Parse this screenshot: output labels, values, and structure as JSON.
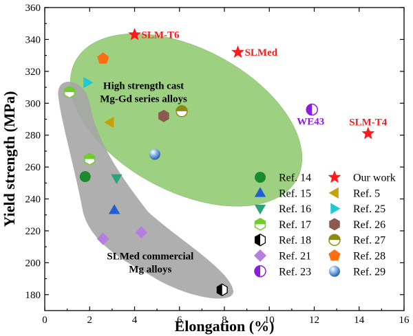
{
  "chart_data": {
    "type": "scatter",
    "title": "",
    "xlabel": "Elongation (%)",
    "ylabel": "Yield strength (MPa)",
    "xlim": [
      0,
      16
    ],
    "ylim": [
      170,
      360
    ],
    "x_ticks": [
      0,
      2,
      4,
      6,
      8,
      10,
      12,
      14,
      16
    ],
    "y_ticks": [
      180,
      200,
      220,
      240,
      260,
      280,
      300,
      320,
      340,
      360
    ],
    "grid": false,
    "legend_placement": "bottom-right",
    "regions": [
      {
        "label_lines": [
          "High strength cast",
          "Mg-Gd series alloys"
        ],
        "color": "#8dc86a"
      },
      {
        "label_lines": [
          "SLMed commercial",
          "Mg alloys"
        ],
        "color": "#a6a6a6"
      }
    ],
    "series": [
      {
        "name": "Ref. 14",
        "marker": "circle",
        "color": "#1a8a2e",
        "points": [
          {
            "x": 1.8,
            "y": 254
          }
        ]
      },
      {
        "name": "Ref. 15",
        "marker": "triangle-up",
        "color": "#1e5fd6",
        "points": [
          {
            "x": 3.1,
            "y": 233
          }
        ]
      },
      {
        "name": "Ref. 16",
        "marker": "triangle-down",
        "color": "#2aa37a",
        "points": [
          {
            "x": 3.2,
            "y": 253
          }
        ]
      },
      {
        "name": "Ref. 17",
        "marker": "hexagon-half",
        "color": "#6fcf2a",
        "points": [
          {
            "x": 1.1,
            "y": 307
          },
          {
            "x": 2.0,
            "y": 265
          }
        ]
      },
      {
        "name": "Ref. 18",
        "marker": "hexagon-left-half",
        "color": "#000000",
        "points": [
          {
            "x": 7.9,
            "y": 183
          }
        ]
      },
      {
        "name": "Ref. 21",
        "marker": "diamond",
        "color": "#b57ee0",
        "points": [
          {
            "x": 2.6,
            "y": 215
          },
          {
            "x": 4.3,
            "y": 219
          }
        ]
      },
      {
        "name": "Ref. 23",
        "marker": "circle-left-half",
        "color": "#8a1be0",
        "points": [
          {
            "x": 11.9,
            "y": 296
          }
        ],
        "label": "WE43"
      },
      {
        "name": "Our work",
        "marker": "star",
        "color": "#ff1a1a",
        "points": [
          {
            "x": 4.0,
            "y": 343,
            "label": "SLM-T6"
          },
          {
            "x": 8.6,
            "y": 332,
            "label": "SLMed"
          },
          {
            "x": 14.4,
            "y": 281,
            "label": "SLM-T4"
          }
        ]
      },
      {
        "name": "Ref. 5",
        "marker": "triangle-left",
        "color": "#c8a000",
        "points": [
          {
            "x": 2.9,
            "y": 288
          }
        ]
      },
      {
        "name": "Ref. 25",
        "marker": "triangle-right",
        "color": "#22c8d8",
        "points": [
          {
            "x": 1.9,
            "y": 313
          }
        ]
      },
      {
        "name": "Ref. 26",
        "marker": "hexagon",
        "color": "#8b5a4e",
        "points": [
          {
            "x": 5.3,
            "y": 292
          }
        ]
      },
      {
        "name": "Ref. 27",
        "marker": "circle-top-half",
        "color": "#8c8a12",
        "points": [
          {
            "x": 6.1,
            "y": 295
          }
        ]
      },
      {
        "name": "Ref. 28",
        "marker": "pentagon",
        "color": "#ff6e10",
        "points": [
          {
            "x": 2.6,
            "y": 328
          }
        ]
      },
      {
        "name": "Ref. 29",
        "marker": "sphere",
        "color": "#4a8fd8",
        "points": [
          {
            "x": 4.9,
            "y": 268
          }
        ]
      }
    ]
  }
}
